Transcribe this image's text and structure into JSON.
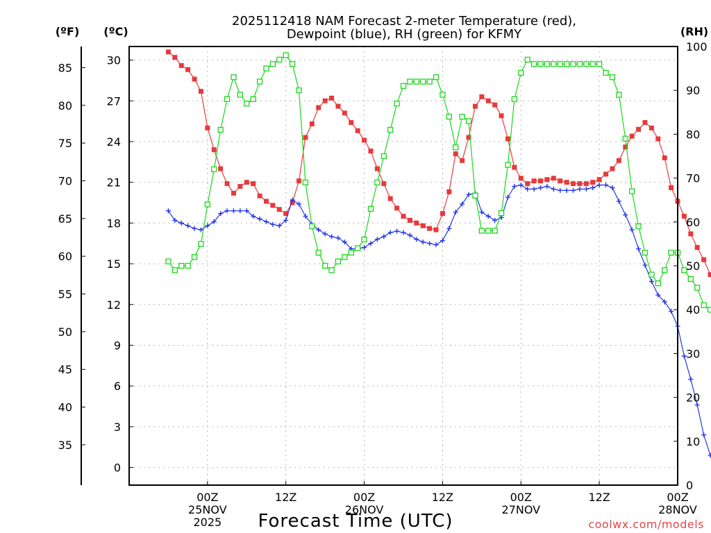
{
  "chart_data": {
    "type": "line",
    "title_lines": [
      "2025112418 NAM Forecast 2-meter Temperature (red),",
      "Dewpoint (blue), RH (green) for KFMY"
    ],
    "xlabel": "Forecast Time (UTC)",
    "credit": "coolwx.com/models",
    "units": {
      "fahrenheit": "(ºF)",
      "celsius": "(ºC)",
      "rh": "(RH)"
    },
    "x_range_hours": [
      -6,
      78
    ],
    "celsius_range": [
      -1.3,
      31.0
    ],
    "rh_range": [
      0,
      100
    ],
    "x_ticks": [
      {
        "hour": 6,
        "lines": [
          "00Z",
          "25NOV",
          "2025"
        ]
      },
      {
        "hour": 18,
        "lines": [
          "12Z"
        ]
      },
      {
        "hour": 30,
        "lines": [
          "00Z",
          "26NOV"
        ]
      },
      {
        "hour": 42,
        "lines": [
          "12Z"
        ]
      },
      {
        "hour": 54,
        "lines": [
          "00Z",
          "27NOV"
        ]
      },
      {
        "hour": 66,
        "lines": [
          "12Z"
        ]
      },
      {
        "hour": 78,
        "lines": [
          "00Z",
          "28NOV"
        ]
      }
    ],
    "celsius_ticks": [
      0,
      3,
      6,
      9,
      12,
      15,
      18,
      21,
      24,
      27,
      30
    ],
    "fahrenheit_ticks": [
      35,
      40,
      45,
      50,
      55,
      60,
      65,
      70,
      75,
      80,
      85
    ],
    "rh_ticks": [
      0,
      10,
      20,
      30,
      40,
      50,
      60,
      70,
      80,
      90,
      100
    ],
    "hours": [
      0,
      1,
      2,
      3,
      4,
      5,
      6,
      7,
      8,
      9,
      10,
      11,
      12,
      13,
      14,
      15,
      16,
      17,
      18,
      19,
      20,
      21,
      22,
      23,
      24,
      25,
      26,
      27,
      28,
      29,
      30,
      31,
      32,
      33,
      34,
      35,
      36,
      37,
      38,
      39,
      40,
      41,
      42,
      43,
      44,
      45,
      46,
      47,
      48,
      49,
      50,
      51,
      52,
      53,
      54,
      55,
      56,
      57,
      58,
      59,
      60,
      61,
      62,
      63,
      64,
      65,
      66,
      67,
      68,
      69,
      70,
      71,
      72,
      73,
      74,
      75,
      76,
      77,
      78,
      79,
      80,
      81,
      82,
      83,
      84
    ],
    "series": [
      {
        "name": "Temperature",
        "unit": "degC",
        "color": "#e8393b",
        "marker": "filled-square",
        "values": [
          30.6,
          30.2,
          29.6,
          29.3,
          28.6,
          27.7,
          25.0,
          23.4,
          22.0,
          20.9,
          20.2,
          20.7,
          21.0,
          20.9,
          20.0,
          19.6,
          19.3,
          19.0,
          18.7,
          19.5,
          21.1,
          24.3,
          25.3,
          26.5,
          27.0,
          27.2,
          26.6,
          26.1,
          25.4,
          24.8,
          24.1,
          23.3,
          22.0,
          20.9,
          19.8,
          19.1,
          18.5,
          18.2,
          18.0,
          17.8,
          17.6,
          17.5,
          18.7,
          20.3,
          23.1,
          22.6,
          24.3,
          26.6,
          27.3,
          27.0,
          26.7,
          25.9,
          24.2,
          22.1,
          21.3,
          20.9,
          21.1,
          21.1,
          21.2,
          21.3,
          21.1,
          21.0,
          20.9,
          20.9,
          20.9,
          21.0,
          21.2,
          21.6,
          22.0,
          22.6,
          23.6,
          24.4,
          24.9,
          25.4,
          25.0,
          24.2,
          22.8,
          20.6,
          19.6,
          18.5,
          17.2,
          16.2,
          15.3,
          14.2,
          12.9
        ]
      },
      {
        "name": "Dewpoint",
        "unit": "degC",
        "color": "#2336e8",
        "marker": "plus",
        "values": [
          18.9,
          18.2,
          18.0,
          17.8,
          17.6,
          17.5,
          17.8,
          18.1,
          18.7,
          18.9,
          18.9,
          18.9,
          18.9,
          18.5,
          18.3,
          18.1,
          17.9,
          17.8,
          18.2,
          19.7,
          19.4,
          18.5,
          17.9,
          17.5,
          17.2,
          17.0,
          16.9,
          16.6,
          16.1,
          16.1,
          16.2,
          16.5,
          16.8,
          17.0,
          17.3,
          17.4,
          17.3,
          17.1,
          16.8,
          16.6,
          16.5,
          16.4,
          16.7,
          17.6,
          18.8,
          19.4,
          20.1,
          20.2,
          18.8,
          18.5,
          18.2,
          18.4,
          19.9,
          20.7,
          20.8,
          20.5,
          20.5,
          20.6,
          20.7,
          20.5,
          20.4,
          20.4,
          20.4,
          20.5,
          20.5,
          20.6,
          20.8,
          20.8,
          20.6,
          19.6,
          18.6,
          17.5,
          16.1,
          14.9,
          13.7,
          12.7,
          12.2,
          11.5,
          10.4,
          8.2,
          6.5,
          4.6,
          2.4,
          0.9,
          0.2
        ]
      },
      {
        "name": "Relative Humidity",
        "unit": "%",
        "color": "#19d719",
        "marker": "open-square",
        "values": [
          51,
          49,
          50,
          50,
          52,
          55,
          64,
          72,
          81,
          88,
          93,
          89,
          87,
          88,
          92,
          95,
          96,
          97,
          98,
          96,
          90,
          69,
          59,
          53,
          50,
          49,
          51,
          52,
          53,
          54,
          56,
          63,
          69,
          75,
          81,
          87,
          91,
          92,
          92,
          92,
          92,
          93,
          89,
          84,
          77,
          84,
          83,
          66,
          58,
          58,
          58,
          62,
          73,
          88,
          94,
          97,
          96,
          96,
          96,
          96,
          96,
          96,
          96,
          96,
          96,
          96,
          96,
          94,
          93,
          89,
          79,
          67,
          59,
          53,
          48,
          46,
          49,
          53,
          53,
          49,
          47,
          45,
          41,
          40,
          41
        ]
      }
    ]
  }
}
